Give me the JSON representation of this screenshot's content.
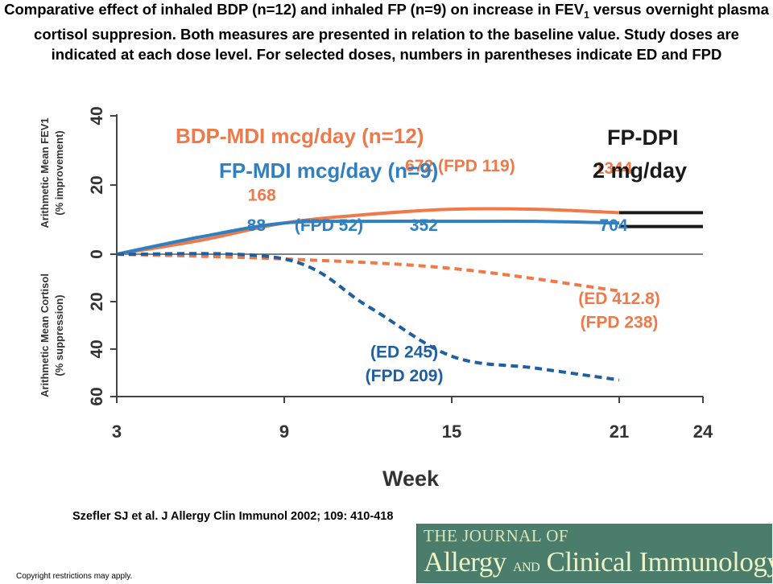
{
  "caption": {
    "part1": "Comparative effect of inhaled BDP (n=12) and inhaled FP (n=9) on increase in FEV",
    "sub": "1",
    "part2": " versus overnight plasma cortisol suppresion. Both measures are presented in relation to the baseline value. Study doses are indicated at each dose level. For selected doses, numbers in parentheses indicate ED and FPD"
  },
  "citation": "Szefler SJ et al. J Allergy Clin Immunol 2002; 109: 410-418",
  "copyright": "Copyright restrictions may apply.",
  "journal_logo": {
    "line1": "THE JOURNAL OF",
    "word1": "Allergy",
    "and": "AND",
    "word2": "Clinical Immunology"
  },
  "colors": {
    "bdp": "#f0794a",
    "fp": "#2f7fc1",
    "fp_dark": "#1e5fa3",
    "black": "#1a1a1a",
    "axis": "#444444"
  },
  "chart_data": {
    "type": "line",
    "xlabel": "Week",
    "x_ticks": [
      3,
      9,
      15,
      21,
      24
    ],
    "xlim": [
      3,
      24
    ],
    "y_upper_label": [
      "Arithmetic Mean FEV1",
      "(% improvement)"
    ],
    "y_lower_label": [
      "Arithmetic Mean Cortisol",
      "(% suppression)"
    ],
    "y_upper_ticks": [
      0,
      20,
      40
    ],
    "y_lower_ticks": [
      20,
      40,
      60
    ],
    "ylim": [
      -60,
      40
    ],
    "legend": [
      "BDP-MDI mcg/day (n=12)",
      "FP-MDI mcg/day (n=9)",
      "FP-DPI",
      "2 mg/day"
    ],
    "series": [
      {
        "name": "BDP-MDI mcg/day (n=12)",
        "measure": "FEV1",
        "style": "solid",
        "color": "#f0794a",
        "x": [
          3,
          6,
          9,
          12,
          15,
          18,
          21
        ],
        "y": [
          0,
          4,
          9,
          11.5,
          13,
          13,
          12
        ]
      },
      {
        "name": "FP-MDI mcg/day (n=9)",
        "measure": "FEV1",
        "style": "solid",
        "color": "#2f7fc1",
        "x": [
          3,
          6,
          9,
          12,
          15,
          18,
          21
        ],
        "y": [
          0,
          5,
          9,
          9.5,
          9.5,
          9.5,
          9
        ]
      },
      {
        "name": "BDP-MDI mcg/day (n=12)",
        "measure": "Cortisol",
        "style": "dashed",
        "color": "#f0794a",
        "x": [
          3,
          9,
          15,
          21
        ],
        "y": [
          0,
          -2,
          -6,
          -15.5
        ]
      },
      {
        "name": "FP-MDI mcg/day (n=9)",
        "measure": "Cortisol",
        "style": "dashed",
        "color": "#1e5fa3",
        "x": [
          3,
          9,
          12,
          15,
          18,
          21
        ],
        "y": [
          0,
          -2,
          -22,
          -43,
          -48,
          -53
        ]
      },
      {
        "name": "FP-DPI 2 mg/day",
        "measure": "FEV1",
        "style": "solid",
        "color": "#1a1a1a",
        "x": [
          21,
          24
        ],
        "y": [
          12,
          12
        ]
      },
      {
        "name": "FP-DPI 2 mg/day",
        "measure": "FEV1",
        "style": "solid",
        "color": "#1a1a1a",
        "x": [
          21,
          24
        ],
        "y": [
          8,
          8
        ]
      }
    ],
    "annotations": [
      {
        "text": "168",
        "color": "#f0794a",
        "x": 8.2,
        "y": 15.5
      },
      {
        "text": "88",
        "color": "#2f7fc1",
        "x": 8.0,
        "y": 6.8
      },
      {
        "text": "(FPD 52)",
        "color": "#2f7fc1",
        "x": 10.6,
        "y": 6.8
      },
      {
        "text": "672  (FPD 119)",
        "color": "#f0794a",
        "x": 15.3,
        "y": 24
      },
      {
        "text": "1344",
        "color": "#f0794a",
        "x": 20.8,
        "y": 23.2
      },
      {
        "text": "352",
        "color": "#2f7fc1",
        "x": 14.0,
        "y": 6.8
      },
      {
        "text": "704",
        "color": "#2f7fc1",
        "x": 20.8,
        "y": 6.8
      },
      {
        "text": "(ED 412.8)",
        "color": "#f0794a",
        "x": 21.0,
        "y": -21
      },
      {
        "text": "(FPD 238)",
        "color": "#f0794a",
        "x": 21.0,
        "y": -31
      },
      {
        "text": "(ED 245)",
        "color": "#1e5fa3",
        "x": 13.3,
        "y": -43.5
      },
      {
        "text": "(FPD 209)",
        "color": "#1e5fa3",
        "x": 13.3,
        "y": -53.5
      }
    ]
  }
}
